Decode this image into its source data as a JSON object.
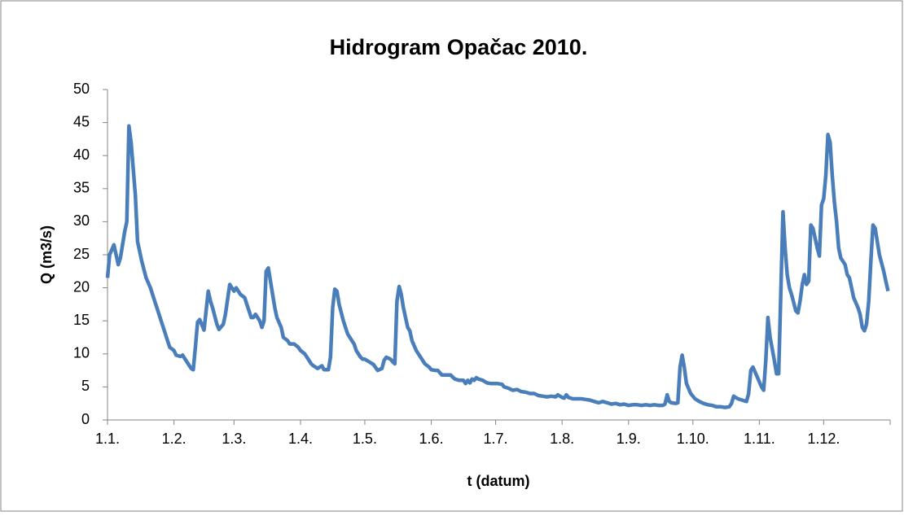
{
  "chart_data": {
    "type": "line",
    "title": "Hidrogram Opačac 2010.",
    "x_label": "t (datum)",
    "y_label": "Q (m3/s)",
    "xlim": [
      0,
      365
    ],
    "xticks": [
      {
        "value": 0,
        "label": "1.1."
      },
      {
        "value": 31,
        "label": "1.2."
      },
      {
        "value": 59,
        "label": "1.3."
      },
      {
        "value": 90,
        "label": "1.4."
      },
      {
        "value": 120,
        "label": "1.5."
      },
      {
        "value": 151,
        "label": "1.6."
      },
      {
        "value": 181,
        "label": "1.7."
      },
      {
        "value": 212,
        "label": "1.8."
      },
      {
        "value": 243,
        "label": "1.9."
      },
      {
        "value": 273,
        "label": "1.10."
      },
      {
        "value": 304,
        "label": "1.11."
      },
      {
        "value": 334,
        "label": "1.12."
      }
    ],
    "ylim": [
      0,
      50
    ],
    "yticks": [
      0,
      5,
      10,
      15,
      20,
      25,
      30,
      35,
      40,
      45,
      50
    ],
    "grid": false,
    "series": [
      {
        "name": "Q",
        "color": "#4a7ebb",
        "x": [
          0,
          1,
          3,
          5,
          6,
          8,
          9,
          10,
          11,
          12,
          13,
          14,
          16,
          18,
          20,
          22,
          23,
          25,
          26,
          28,
          29,
          31,
          32,
          34,
          35,
          37,
          39,
          40,
          41,
          42,
          43,
          45,
          47,
          48,
          49,
          51,
          52,
          54,
          55,
          57,
          58,
          59,
          60,
          62,
          64,
          65,
          66,
          67,
          68,
          69,
          71,
          72,
          73,
          74,
          75,
          76,
          78,
          79,
          81,
          82,
          84,
          85,
          86,
          87,
          89,
          90,
          92,
          94,
          95,
          96,
          98,
          99,
          100,
          101,
          103,
          104,
          105,
          106,
          107,
          108,
          110,
          112,
          114,
          115,
          116,
          118,
          119,
          120,
          122,
          124,
          126,
          128,
          129,
          130,
          132,
          133,
          134,
          135,
          136,
          137,
          138,
          140,
          141,
          142,
          144,
          146,
          148,
          150,
          151,
          153,
          154,
          156,
          158,
          160,
          162,
          164,
          166,
          167,
          168,
          169,
          170,
          171,
          172,
          173,
          175,
          177,
          179,
          182,
          184,
          185,
          187,
          189,
          191,
          193,
          195,
          197,
          199,
          201,
          203,
          205,
          207,
          209,
          210,
          212,
          213,
          214,
          215,
          217,
          219,
          221,
          223,
          225,
          227,
          229,
          231,
          233,
          235,
          237,
          239,
          241,
          243,
          245,
          247,
          249,
          251,
          253,
          255,
          257,
          259,
          260,
          261,
          262,
          263,
          265,
          266,
          267,
          268,
          269,
          270,
          272,
          274,
          276,
          278,
          280,
          282,
          284,
          286,
          288,
          290,
          291,
          292,
          294,
          296,
          298,
          299,
          300,
          301,
          303,
          305,
          306,
          307,
          308,
          309,
          311,
          312,
          313,
          315,
          316,
          317,
          318,
          319,
          321,
          322,
          323,
          324,
          325,
          326,
          327,
          328,
          329,
          331,
          332,
          333,
          334,
          335,
          336,
          337,
          338,
          339,
          340,
          341,
          342,
          343,
          344,
          345,
          346,
          347,
          348,
          350,
          351,
          352,
          353,
          354,
          355,
          356,
          357,
          358,
          359,
          360,
          362,
          363,
          364
        ],
        "values": [
          21.5,
          25,
          26.5,
          23.5,
          24.5,
          28.5,
          30,
          44.5,
          42,
          38,
          34,
          27,
          24,
          21.5,
          20,
          18,
          17,
          15,
          14,
          12,
          11,
          10.5,
          9.8,
          9.6,
          9.8,
          8.8,
          7.8,
          7.6,
          11,
          14.8,
          15.2,
          13.6,
          19.5,
          18,
          17,
          14.5,
          13.7,
          14.5,
          16,
          20.5,
          20,
          19.5,
          20,
          19,
          18.5,
          17.5,
          16.5,
          15.5,
          15.5,
          16,
          15,
          14,
          15,
          22.5,
          23,
          21,
          17,
          15.5,
          14,
          12.5,
          12,
          11.5,
          11.5,
          11.5,
          11,
          10.5,
          10,
          9,
          8.5,
          8.2,
          7.8,
          8,
          8.2,
          7.6,
          7.6,
          9.5,
          17,
          19.8,
          19.5,
          17.5,
          15,
          13,
          12,
          11.5,
          10.5,
          9.5,
          9.2,
          9.2,
          8.8,
          8.4,
          7.5,
          7.8,
          9,
          9.5,
          9.2,
          8.8,
          8.5,
          18,
          20.2,
          19,
          17,
          14,
          13.5,
          12,
          10.5,
          9.5,
          8.5,
          8,
          7.6,
          7.5,
          7.5,
          6.8,
          6.8,
          6.8,
          6.2,
          6,
          6,
          5.5,
          6,
          5.6,
          6.2,
          6,
          6.4,
          6.2,
          6,
          5.6,
          5.5,
          5.5,
          5.4,
          5,
          4.8,
          4.5,
          4.6,
          4.3,
          4.2,
          4,
          4,
          3.7,
          3.6,
          3.5,
          3.6,
          3.5,
          3.8,
          3.4,
          3.3,
          3.8,
          3.4,
          3.2,
          3.2,
          3.2,
          3.1,
          3,
          2.8,
          2.6,
          2.8,
          2.6,
          2.4,
          2.5,
          2.3,
          2.4,
          2.2,
          2.3,
          2.3,
          2.2,
          2.3,
          2.2,
          2.3,
          2.2,
          2.2,
          2.4,
          3.8,
          2.8,
          2.6,
          2.5,
          2.6,
          8,
          9.8,
          8,
          5.5,
          4,
          3.2,
          2.8,
          2.5,
          2.3,
          2.2,
          2,
          2,
          1.9,
          2,
          2.5,
          3.6,
          3.2,
          3,
          2.8,
          4,
          7.5,
          8,
          6.5,
          5,
          4.5,
          9,
          15.5,
          12.5,
          9,
          7,
          7,
          31.5,
          26,
          22,
          20,
          19,
          16.5,
          16.2,
          18,
          20.5,
          22,
          20.5,
          21,
          29.5,
          29,
          26,
          24.8,
          32.5,
          33.5,
          37,
          43.2,
          42,
          37,
          33,
          30,
          26,
          24.5,
          24,
          23.5,
          22,
          21.5,
          20,
          18.5,
          17,
          16,
          14,
          13.5,
          14.5,
          18,
          24,
          29.5,
          29,
          27,
          25,
          22.5,
          21,
          19.5
        ]
      }
    ]
  }
}
